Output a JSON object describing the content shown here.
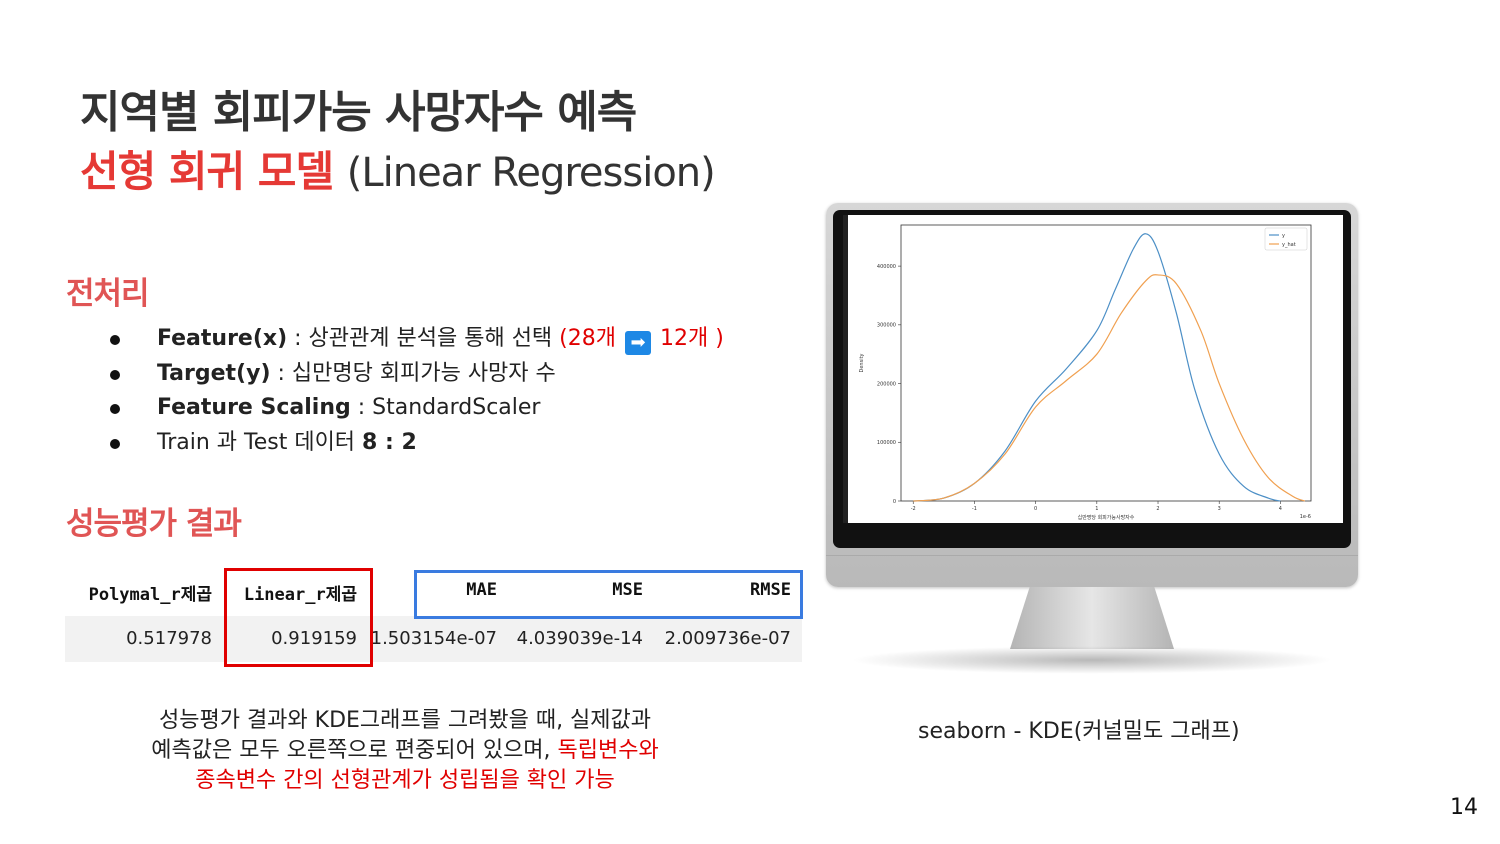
{
  "title": {
    "line1": "지역별 회피가능 사망자수 예측",
    "line2_ko": "선형 회귀 모델",
    "line2_en": "(Linear Regression)"
  },
  "preprocessing": {
    "heading": "전처리",
    "items": [
      {
        "label": "Feature(x)",
        "text": " : 상관관계 분석을 통해 선택 ",
        "highlight_a": "(28개 ",
        "arrow": "➡",
        "highlight_b": " 12개 )"
      },
      {
        "label": "Target(y)",
        "text": " : 십만명당 회피가능 사망자 수"
      },
      {
        "label": "Feature Scaling",
        "text": " : StandardScaler"
      },
      {
        "text_pre": "Train 과 Test 데이터 ",
        "bold": "8 : 2"
      }
    ]
  },
  "evaluation": {
    "heading": "성능평가 결과",
    "columns": [
      "Polymal_r제곱",
      "Linear_r제곱",
      "MAE",
      "MSE",
      "RMSE"
    ],
    "row": [
      "0.517978",
      "0.919159",
      "1.503154e-07",
      "4.039039e-14",
      "2.009736e-07"
    ]
  },
  "summary": {
    "line1": "성능평가 결과와 KDE그래프를 그려봤을 때, 실제값과",
    "line2_black": "예측값은 모두 오른쪽으로 편중되어 있으며, ",
    "line2_red": "독립변수와",
    "line3_red": "종속변수 간의 선형관계가 성립됨을 확인 가능"
  },
  "caption": "seaborn - KDE(커널밀도 그래프)",
  "page_number": "14",
  "chart_data": {
    "type": "line",
    "xlabel": "십만명당 회피가능사망자수",
    "ylabel": "Density",
    "x_multiplier": "1e-6",
    "xlim": [
      -2.2,
      4.5
    ],
    "ylim": [
      0,
      470000
    ],
    "x_ticks": [
      "-2",
      "-1",
      "0",
      "1",
      "2",
      "3",
      "4"
    ],
    "y_ticks": [
      "0",
      "100000",
      "200000",
      "300000",
      "400000"
    ],
    "legend_position": "top-right",
    "series": [
      {
        "name": "y",
        "color": "#4c8fc6",
        "x": [
          -2.0,
          -1.5,
          -1.0,
          -0.5,
          0.0,
          0.5,
          1.0,
          1.3,
          1.6,
          1.8,
          2.0,
          2.3,
          2.6,
          3.0,
          3.4,
          3.8,
          4.0
        ],
        "y": [
          0,
          5000,
          30000,
          85000,
          170000,
          225000,
          290000,
          360000,
          430000,
          455000,
          425000,
          320000,
          190000,
          80000,
          25000,
          5000,
          0
        ]
      },
      {
        "name": "y_hat",
        "color": "#f0a050",
        "x": [
          -2.0,
          -1.5,
          -1.0,
          -0.5,
          0.0,
          0.5,
          1.0,
          1.4,
          1.8,
          2.0,
          2.3,
          2.7,
          3.0,
          3.4,
          3.8,
          4.2,
          4.4
        ],
        "y": [
          0,
          5000,
          30000,
          80000,
          160000,
          205000,
          250000,
          320000,
          375000,
          385000,
          370000,
          290000,
          200000,
          105000,
          40000,
          8000,
          0
        ]
      }
    ]
  }
}
